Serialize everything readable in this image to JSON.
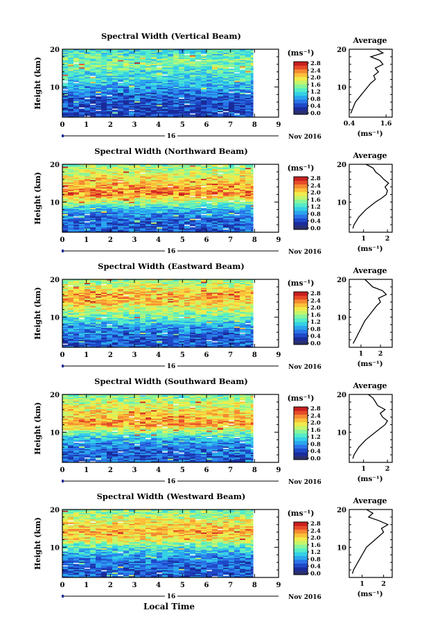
{
  "figure": {
    "xlabel": "Local Time",
    "date_label": "Nov 2016",
    "day_label": "16"
  },
  "colorbar": {
    "unit": "(ms⁻¹)",
    "ticks": [
      "2.8",
      "2.4",
      "2.0",
      "1.6",
      "1.2",
      "0.8",
      "0.4",
      "0.0"
    ],
    "colors": [
      "#2a2f6e",
      "#1a2b9a",
      "#1f49c8",
      "#2a74e8",
      "#2aa6ee",
      "#35d0e6",
      "#55ecc8",
      "#88f59a",
      "#c6f56a",
      "#f2ea4a",
      "#fbc03a",
      "#f58a32",
      "#e64a2a",
      "#c81e1e"
    ]
  },
  "average_panel": {
    "title": "Average",
    "xlabel": "(ms⁻¹)"
  },
  "chart_data": [
    {
      "type": "heatmap",
      "title": "Spectral Width (Vertical Beam)",
      "ylabel": "Height (km)",
      "x_ticks": [
        "0",
        "1",
        "2",
        "3",
        "4",
        "5",
        "6",
        "7",
        "8",
        "9"
      ],
      "xlim": [
        0,
        9
      ],
      "ylim": [
        2,
        20
      ],
      "y_ticks": [
        "10",
        "20"
      ],
      "data_end_time": 7.95,
      "profile_heights": [
        20,
        18,
        16,
        14,
        12,
        10,
        8,
        6,
        4,
        2
      ],
      "profile_intensity": [
        0.35,
        0.45,
        0.5,
        0.4,
        0.35,
        0.28,
        0.18,
        0.12,
        0.1,
        0.1
      ],
      "average": {
        "x_ticks": [
          "0.4",
          "1.6"
        ],
        "xlim": [
          0.4,
          1.8
        ],
        "heights": [
          3,
          4,
          5,
          6,
          7,
          8,
          9,
          10,
          11,
          12,
          13,
          14,
          15,
          16,
          17,
          18,
          19,
          20
        ],
        "values": [
          0.45,
          0.5,
          0.55,
          0.6,
          0.7,
          0.8,
          0.9,
          1.0,
          1.1,
          1.25,
          1.2,
          1.35,
          1.25,
          1.5,
          1.4,
          1.1,
          1.5,
          1.3
        ]
      }
    },
    {
      "type": "heatmap",
      "title": "Spectral Width (Northward Beam)",
      "ylabel": "Height (km)",
      "x_ticks": [
        "0",
        "1",
        "2",
        "3",
        "4",
        "5",
        "6",
        "7",
        "8",
        "9"
      ],
      "xlim": [
        0,
        9
      ],
      "ylim": [
        2,
        20
      ],
      "y_ticks": [
        "10",
        "20"
      ],
      "data_end_time": 7.95,
      "profile_heights": [
        20,
        18,
        16,
        14,
        12,
        10,
        8,
        6,
        4,
        2
      ],
      "profile_intensity": [
        0.5,
        0.6,
        0.68,
        0.75,
        0.82,
        0.55,
        0.3,
        0.2,
        0.15,
        0.15
      ],
      "average": {
        "x_ticks": [
          "1",
          "2"
        ],
        "xlim": [
          0.4,
          2.2
        ],
        "heights": [
          3,
          4,
          5,
          6,
          7,
          8,
          9,
          10,
          11,
          12,
          13,
          14,
          15,
          16,
          17,
          18,
          19,
          20
        ],
        "values": [
          0.55,
          0.6,
          0.7,
          0.8,
          0.95,
          1.1,
          1.3,
          1.5,
          1.75,
          1.95,
          2.0,
          1.9,
          2.05,
          1.85,
          1.7,
          1.5,
          1.4,
          1.1
        ]
      }
    },
    {
      "type": "heatmap",
      "title": "Spectral Width (Eastward Beam)",
      "ylabel": "Height (km)",
      "x_ticks": [
        "0",
        "1",
        "2",
        "3",
        "4",
        "5",
        "6",
        "7",
        "8",
        "9"
      ],
      "xlim": [
        0,
        9
      ],
      "ylim": [
        2,
        20
      ],
      "y_ticks": [
        "10",
        "20"
      ],
      "data_end_time": 7.95,
      "profile_heights": [
        20,
        18,
        16,
        14,
        12,
        10,
        8,
        6,
        4,
        2
      ],
      "profile_intensity": [
        0.5,
        0.62,
        0.75,
        0.7,
        0.6,
        0.45,
        0.3,
        0.2,
        0.15,
        0.15
      ],
      "average": {
        "x_ticks": [
          "1",
          "2"
        ],
        "xlim": [
          0.4,
          2.6
        ],
        "heights": [
          3,
          4,
          5,
          6,
          7,
          8,
          9,
          10,
          11,
          12,
          13,
          14,
          15,
          16,
          17,
          18,
          19,
          20
        ],
        "values": [
          0.6,
          0.7,
          0.8,
          0.9,
          1.0,
          1.1,
          1.2,
          1.35,
          1.5,
          1.65,
          1.8,
          2.0,
          1.9,
          2.3,
          2.1,
          1.6,
          1.4,
          1.2
        ]
      }
    },
    {
      "type": "heatmap",
      "title": "Spectral Width (Southward Beam)",
      "ylabel": "Height (km)",
      "x_ticks": [
        "0",
        "1",
        "2",
        "3",
        "4",
        "5",
        "6",
        "7",
        "8",
        "9"
      ],
      "xlim": [
        0,
        9
      ],
      "ylim": [
        2,
        20
      ],
      "y_ticks": [
        "10",
        "20"
      ],
      "data_end_time": 7.95,
      "profile_heights": [
        20,
        18,
        16,
        14,
        12,
        10,
        8,
        6,
        4,
        2
      ],
      "profile_intensity": [
        0.45,
        0.58,
        0.65,
        0.72,
        0.78,
        0.5,
        0.3,
        0.2,
        0.15,
        0.15
      ],
      "average": {
        "x_ticks": [
          "1",
          "2"
        ],
        "xlim": [
          0.4,
          2.2
        ],
        "heights": [
          3,
          4,
          5,
          6,
          7,
          8,
          9,
          10,
          11,
          12,
          13,
          14,
          15,
          16,
          17,
          18,
          19,
          20
        ],
        "values": [
          0.55,
          0.6,
          0.7,
          0.8,
          0.95,
          1.1,
          1.3,
          1.5,
          1.7,
          1.9,
          2.0,
          1.8,
          1.7,
          1.9,
          1.6,
          1.5,
          1.4,
          1.2
        ]
      }
    },
    {
      "type": "heatmap",
      "title": "Spectral Width (Westward Beam)",
      "ylabel": "Height (km)",
      "x_ticks": [
        "0",
        "1",
        "2",
        "3",
        "4",
        "5",
        "6",
        "7",
        "8",
        "9"
      ],
      "xlim": [
        0,
        9
      ],
      "ylim": [
        2,
        20
      ],
      "y_ticks": [
        "10",
        "20"
      ],
      "data_end_time": 7.95,
      "profile_heights": [
        20,
        18,
        16,
        14,
        12,
        10,
        8,
        6,
        4,
        2
      ],
      "profile_intensity": [
        0.48,
        0.58,
        0.68,
        0.75,
        0.65,
        0.42,
        0.28,
        0.18,
        0.15,
        0.15
      ],
      "average": {
        "x_ticks": [
          "1",
          "2"
        ],
        "xlim": [
          0.4,
          2.4
        ],
        "heights": [
          3,
          4,
          5,
          6,
          7,
          8,
          9,
          10,
          11,
          12,
          13,
          14,
          15,
          16,
          17,
          18,
          19,
          20
        ],
        "values": [
          0.55,
          0.6,
          0.7,
          0.8,
          0.9,
          1.0,
          1.1,
          1.2,
          1.4,
          1.6,
          1.8,
          2.0,
          1.9,
          2.2,
          1.8,
          1.3,
          1.5,
          1.2
        ]
      }
    }
  ]
}
